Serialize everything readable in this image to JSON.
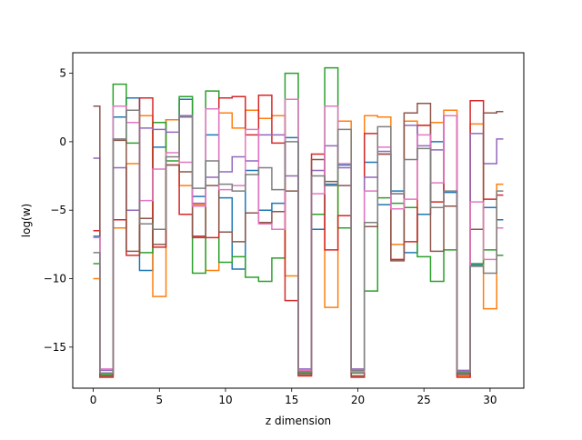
{
  "chart_data": {
    "type": "line",
    "drawstyle": "steps-mid",
    "title": "",
    "xlabel": "z dimension",
    "ylabel": "log(w)",
    "xlim": [
      -1.55,
      32.55
    ],
    "ylim": [
      -18.0,
      6.5
    ],
    "xticks": [
      0,
      5,
      10,
      15,
      20,
      25,
      30
    ],
    "xtick_labels": [
      "0",
      "5",
      "10",
      "15",
      "20",
      "25",
      "30"
    ],
    "yticks": [
      -15,
      -10,
      -5,
      0,
      5
    ],
    "ytick_labels": [
      "−15",
      "−10",
      "−5",
      "0",
      "5"
    ],
    "grid": false,
    "legend": "none",
    "x": [
      0,
      1,
      2,
      3,
      4,
      5,
      6,
      7,
      8,
      9,
      10,
      11,
      12,
      13,
      14,
      15,
      16,
      17,
      18,
      19,
      20,
      21,
      22,
      23,
      24,
      25,
      26,
      27,
      28,
      29,
      30,
      31
    ],
    "series": [
      {
        "color": "#1f77b4",
        "values": [
          -6.9,
          -16.9,
          1.8,
          3.2,
          -9.4,
          -0.4,
          1.6,
          3.1,
          -4.0,
          0.5,
          -4.1,
          -9.3,
          -2.1,
          -5.0,
          -4.5,
          0.3,
          -16.8,
          -6.4,
          -3.1,
          -1.7,
          -16.8,
          -1.5,
          -4.6,
          -3.6,
          -8.1,
          -5.3,
          0.0,
          -3.7,
          -16.9,
          -9.0,
          -4.8,
          -5.7
        ]
      },
      {
        "color": "#ff7f0e",
        "values": [
          -10.0,
          -17.1,
          -6.3,
          -1.6,
          1.9,
          -11.3,
          1.6,
          -3.2,
          -4.6,
          -9.4,
          2.1,
          1.0,
          2.3,
          1.7,
          1.9,
          -9.8,
          -16.9,
          -5.3,
          -12.1,
          1.5,
          -17.1,
          1.9,
          1.8,
          -7.5,
          1.5,
          1.2,
          1.4,
          2.3,
          -17.1,
          1.3,
          -12.2,
          -3.1
        ]
      },
      {
        "color": "#2ca02c",
        "values": [
          -8.9,
          -17.0,
          4.2,
          -0.1,
          -8.1,
          1.4,
          -1.4,
          3.3,
          -9.6,
          3.7,
          -8.8,
          -8.4,
          -9.9,
          -10.2,
          -8.5,
          5.0,
          -16.9,
          -5.3,
          5.4,
          -6.3,
          -16.9,
          -10.9,
          -4.1,
          -4.5,
          -4.8,
          -8.4,
          -10.2,
          -7.9,
          -16.9,
          -8.9,
          -7.9,
          -8.3
        ]
      },
      {
        "color": "#d62728",
        "values": [
          -6.5,
          -17.2,
          -5.7,
          -8.3,
          3.2,
          -7.7,
          -1.7,
          -5.3,
          -6.9,
          -7.0,
          3.2,
          3.3,
          0.5,
          3.4,
          -0.1,
          -11.6,
          -17.1,
          -0.9,
          -7.9,
          -5.4,
          -17.2,
          0.6,
          -0.9,
          -8.6,
          -7.3,
          1.2,
          -4.4,
          1.9,
          -17.2,
          3.0,
          -4.2,
          -3.9
        ]
      },
      {
        "color": "#9467bd",
        "values": [
          -1.2,
          -16.7,
          -1.9,
          -5.0,
          1.0,
          0.9,
          0.7,
          1.9,
          -4.5,
          -2.6,
          -2.2,
          -1.1,
          -1.4,
          0.5,
          0.5,
          -2.5,
          -16.6,
          -2.1,
          -0.3,
          -1.9,
          -16.6,
          -2.6,
          -0.7,
          -3.8,
          1.2,
          -0.3,
          -0.6,
          1.9,
          -16.7,
          0.6,
          -1.6,
          0.2
        ]
      },
      {
        "color": "#8c564b",
        "values": [
          2.6,
          -17.1,
          0.1,
          -8.0,
          -5.6,
          -7.5,
          -1.7,
          -2.2,
          -7.0,
          -3.2,
          -6.6,
          -7.3,
          -5.2,
          -5.9,
          -5.1,
          -3.6,
          -17.0,
          -1.3,
          -2.9,
          -3.2,
          -17.1,
          -6.2,
          -0.9,
          -8.7,
          2.1,
          2.8,
          -8.0,
          -4.7,
          -17.0,
          -6.4,
          2.1,
          2.2
        ]
      },
      {
        "color": "#e377c2",
        "values": [
          -7.0,
          -16.6,
          2.6,
          1.4,
          -4.3,
          -2.0,
          -0.8,
          -1.5,
          -4.7,
          2.4,
          -3.5,
          -3.2,
          0.9,
          -6.0,
          -6.4,
          3.1,
          -16.7,
          -3.8,
          2.6,
          -1.6,
          -16.8,
          -3.6,
          -0.4,
          -4.9,
          -4.2,
          0.5,
          -3.0,
          1.9,
          -16.8,
          -4.4,
          -8.6,
          -6.3
        ]
      },
      {
        "color": "#7f7f7f",
        "values": [
          -8.1,
          -16.9,
          0.2,
          2.3,
          -6.0,
          -6.4,
          -1.1,
          1.8,
          -3.4,
          -1.4,
          -3.1,
          -3.6,
          -2.4,
          -1.9,
          -3.5,
          0.0,
          -16.8,
          -2.5,
          -3.2,
          0.9,
          -16.7,
          -5.9,
          1.1,
          -3.8,
          -1.3,
          -0.5,
          -4.8,
          -3.6,
          -16.8,
          -9.1,
          -9.6,
          -3.6
        ]
      }
    ]
  }
}
